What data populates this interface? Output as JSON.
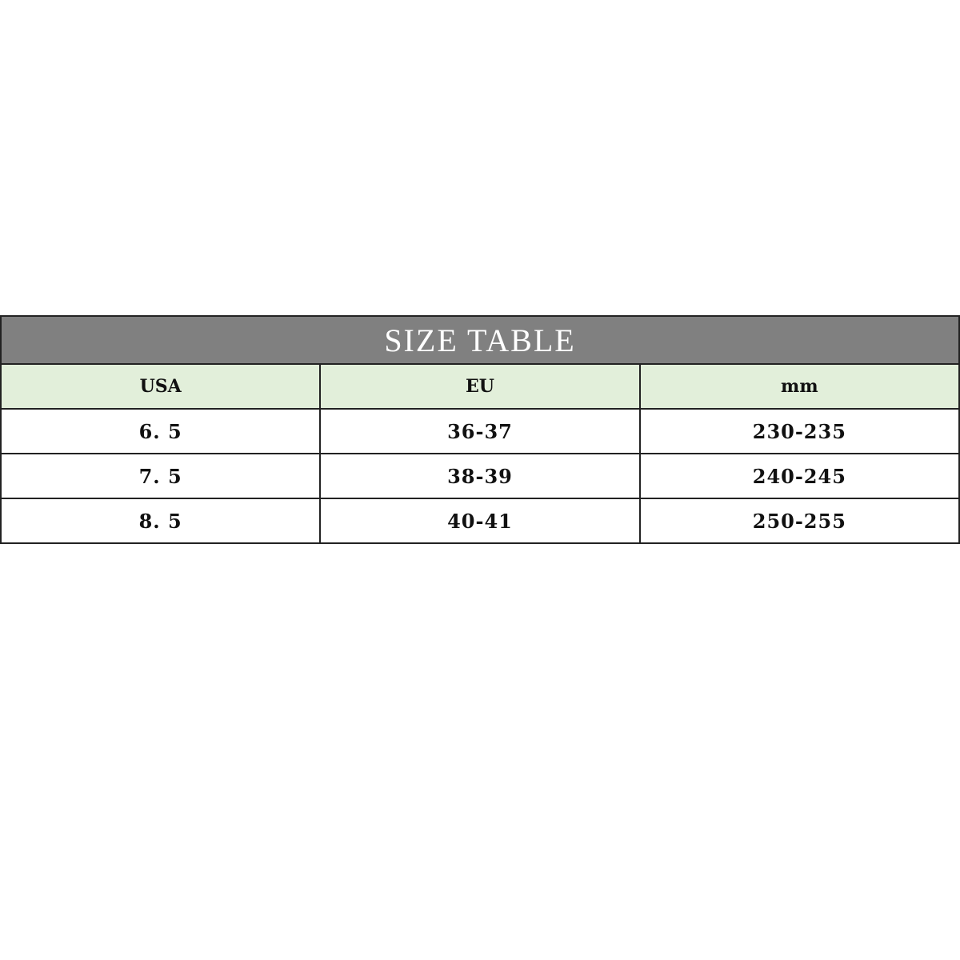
{
  "table": {
    "title": "SIZE TABLE",
    "headers": [
      "USA",
      "EU",
      "mm"
    ],
    "rows": [
      [
        "6. 5",
        "36-37",
        "230-235"
      ],
      [
        "7. 5",
        "38-39",
        "240-245"
      ],
      [
        "8. 5",
        "40-41",
        "250-255"
      ]
    ],
    "colors": {
      "title_bg": "#808080",
      "header_bg": "#e2efda"
    }
  }
}
